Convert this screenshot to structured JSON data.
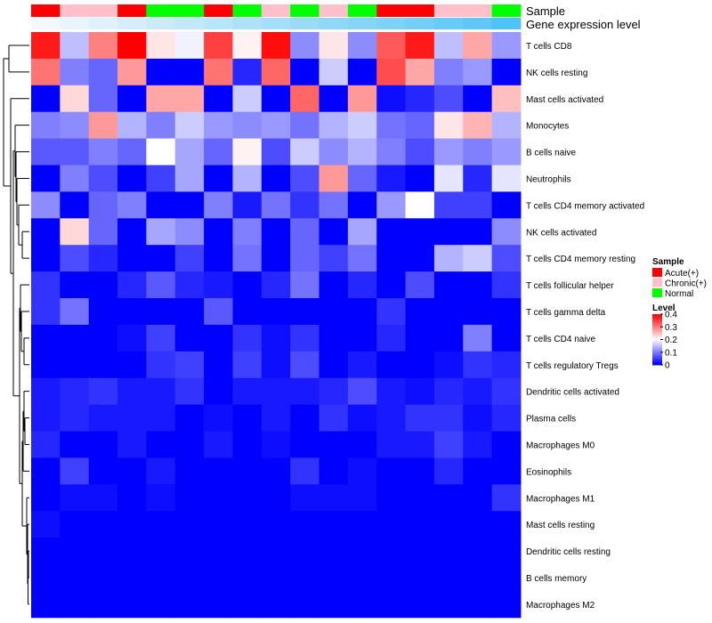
{
  "chart_data": {
    "type": "heatmap",
    "annotation_rows": [
      "Sample",
      "Gene expression level"
    ],
    "sample_groups": [
      "Acute(+)",
      "Chronic(+)",
      "Chronic(+)",
      "Acute(+)",
      "Normal",
      "Normal",
      "Acute(+)",
      "Normal",
      "Chronic(+)",
      "Normal",
      "Chronic(+)",
      "Normal",
      "Acute(+)",
      "Acute(+)",
      "Chronic(+)",
      "Chronic(+)",
      "Normal"
    ],
    "gene_expression_level": [
      0.0,
      0.06,
      0.12,
      0.18,
      0.24,
      0.3,
      0.36,
      0.42,
      0.48,
      0.54,
      0.6,
      0.66,
      0.72,
      0.78,
      0.84,
      0.9,
      1.0
    ],
    "rows": [
      "T cells CD8",
      "NK cells resting",
      "Mast cells activated",
      "Monocytes",
      "B cells naive",
      "Neutrophils",
      "T cells CD4 memory activated",
      "NK cells activated",
      "T cells CD4 memory resting",
      "T cells follicular helper",
      "T cells gamma delta",
      "T cells CD4 naive",
      "T cells regulatory  Tregs",
      "Dendritic cells activated",
      "Plasma cells",
      "Macrophages M0",
      "Eosinophils",
      "Macrophages M1",
      "Mast cells resting",
      "Dendritic cells resting",
      "B cells memory",
      "Macrophages M2"
    ],
    "values": [
      [
        0.38,
        0.15,
        0.3,
        0.4,
        0.22,
        0.19,
        0.35,
        0.21,
        0.39,
        0.11,
        0.22,
        0.11,
        0.33,
        0.38,
        0.15,
        0.27,
        0.12
      ],
      [
        0.31,
        0.1,
        0.08,
        0.28,
        0.0,
        0.0,
        0.31,
        0.03,
        0.32,
        0.0,
        0.16,
        0.0,
        0.34,
        0.27,
        0.1,
        0.12,
        0.0
      ],
      [
        0.0,
        0.23,
        0.08,
        0.0,
        0.27,
        0.27,
        0.0,
        0.16,
        0.0,
        0.32,
        0.0,
        0.28,
        0.01,
        0.03,
        0.06,
        0.0,
        0.25
      ],
      [
        0.1,
        0.11,
        0.28,
        0.14,
        0.1,
        0.16,
        0.12,
        0.11,
        0.12,
        0.09,
        0.14,
        0.16,
        0.09,
        0.08,
        0.22,
        0.26,
        0.14
      ],
      [
        0.07,
        0.07,
        0.1,
        0.08,
        0.2,
        0.13,
        0.08,
        0.21,
        0.06,
        0.16,
        0.11,
        0.14,
        0.1,
        0.06,
        0.12,
        0.1,
        0.12
      ],
      [
        0.0,
        0.1,
        0.06,
        0.0,
        0.05,
        0.13,
        0.0,
        0.14,
        0.0,
        0.06,
        0.28,
        0.08,
        0.02,
        0.0,
        0.18,
        0.03,
        0.18
      ],
      [
        0.11,
        0.0,
        0.08,
        0.1,
        0.0,
        0.0,
        0.1,
        0.02,
        0.09,
        0.04,
        0.09,
        0.0,
        0.12,
        0.2,
        0.05,
        0.05,
        0.0
      ],
      [
        0.0,
        0.23,
        0.08,
        0.0,
        0.13,
        0.11,
        0.0,
        0.1,
        0.0,
        0.08,
        0.0,
        0.13,
        0.0,
        0.0,
        0.0,
        0.0,
        0.11
      ],
      [
        0.0,
        0.06,
        0.03,
        0.0,
        0.0,
        0.05,
        0.0,
        0.09,
        0.0,
        0.08,
        0.05,
        0.09,
        0.0,
        0.0,
        0.14,
        0.16,
        0.06
      ],
      [
        0.04,
        0.0,
        0.0,
        0.03,
        0.07,
        0.03,
        0.02,
        0.0,
        0.03,
        0.09,
        0.0,
        0.03,
        0.0,
        0.06,
        0.0,
        0.0,
        0.04
      ],
      [
        0.04,
        0.09,
        0.0,
        0.0,
        0.0,
        0.0,
        0.07,
        0.0,
        0.0,
        0.0,
        0.0,
        0.0,
        0.04,
        0.0,
        0.0,
        0.0,
        0.0
      ],
      [
        0.0,
        0.0,
        0.0,
        0.01,
        0.05,
        0.0,
        0.0,
        0.04,
        0.01,
        0.04,
        0.0,
        0.0,
        0.03,
        0.0,
        0.0,
        0.1,
        0.0
      ],
      [
        0.0,
        0.0,
        0.0,
        0.0,
        0.04,
        0.05,
        0.0,
        0.05,
        0.01,
        0.06,
        0.0,
        0.02,
        0.0,
        0.0,
        0.01,
        0.04,
        0.03
      ],
      [
        0.02,
        0.03,
        0.04,
        0.02,
        0.02,
        0.04,
        0.0,
        0.02,
        0.02,
        0.02,
        0.03,
        0.06,
        0.02,
        0.01,
        0.03,
        0.02,
        0.04
      ],
      [
        0.02,
        0.03,
        0.02,
        0.02,
        0.02,
        0.0,
        0.01,
        0.0,
        0.02,
        0.0,
        0.04,
        0.01,
        0.02,
        0.04,
        0.04,
        0.01,
        0.03
      ],
      [
        0.03,
        0.0,
        0.0,
        0.02,
        0.0,
        0.0,
        0.02,
        0.0,
        0.01,
        0.0,
        0.0,
        0.0,
        0.02,
        0.02,
        0.05,
        0.02,
        0.0
      ],
      [
        0.0,
        0.05,
        0.0,
        0.0,
        0.02,
        0.0,
        0.0,
        0.0,
        0.0,
        0.04,
        0.0,
        0.01,
        0.0,
        0.0,
        0.03,
        0.0,
        0.0
      ],
      [
        0.0,
        0.01,
        0.01,
        0.0,
        0.01,
        0.0,
        0.0,
        0.0,
        0.0,
        0.01,
        0.01,
        0.01,
        0.0,
        0.0,
        0.0,
        0.0,
        0.04
      ],
      [
        0.01,
        0.0,
        0.0,
        0.0,
        0.0,
        0.0,
        0.0,
        0.0,
        0.0,
        0.0,
        0.0,
        0.0,
        0.0,
        0.0,
        0.0,
        0.0,
        0.0
      ],
      [
        0.0,
        0.0,
        0.0,
        0.0,
        0.0,
        0.0,
        0.0,
        0.0,
        0.0,
        0.0,
        0.0,
        0.0,
        0.0,
        0.0,
        0.0,
        0.0,
        0.0
      ],
      [
        0.0,
        0.0,
        0.0,
        0.0,
        0.0,
        0.0,
        0.0,
        0.0,
        0.0,
        0.0,
        0.0,
        0.0,
        0.0,
        0.0,
        0.0,
        0.0,
        0.0
      ],
      [
        0.0,
        0.0,
        0.0,
        0.0,
        0.0,
        0.0,
        0.0,
        0.0,
        0.0,
        0.0,
        0.0,
        0.0,
        0.0,
        0.0,
        0.0,
        0.0,
        0.0
      ]
    ],
    "legend_sample": {
      "title": "Sample",
      "entries": [
        {
          "label": "Acute(+)",
          "color": "#ff0000"
        },
        {
          "label": "Chronic(+)",
          "color": "#ffc0cb"
        },
        {
          "label": "Normal",
          "color": "#00ff00"
        }
      ]
    },
    "legend_level": {
      "title": "Level",
      "range": [
        0,
        0.4
      ],
      "ticks": [
        0.4,
        0.3,
        0.2,
        0.1,
        0
      ],
      "tick_labels": [
        "0.4",
        "0.3",
        "0.2",
        "0.1",
        "0"
      ]
    },
    "color_scale": {
      "low": "#0000ff",
      "mid": "#ffffff",
      "high": "#ff0000"
    },
    "gene_expression_colors": {
      "low": "#f2f8fc",
      "high": "#4fc3f7"
    }
  }
}
